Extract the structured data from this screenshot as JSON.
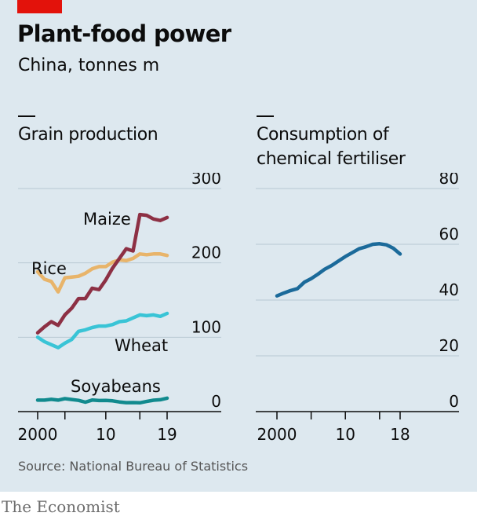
{
  "header": {
    "title": "Plant-food power",
    "subtitle": "China, tonnes m"
  },
  "footer": {
    "source": "Source: National Bureau of Statistics",
    "brand": "The Economist"
  },
  "colors": {
    "background": "#dde8ef",
    "accent_red": "#e3120b",
    "maize": "#8d3044",
    "rice": "#e8b46a",
    "wheat": "#39c4d6",
    "soyabeans": "#118a8e",
    "fertiliser": "#1b6a9a"
  },
  "chart_data": [
    {
      "type": "line",
      "title": "Grain production",
      "ylim": [
        0,
        300
      ],
      "yticks": [
        0,
        100,
        200,
        300
      ],
      "xlim": [
        1999.5,
        2020
      ],
      "xticks": [
        2000,
        2004,
        2010,
        2015,
        2019
      ],
      "xtick_labels": [
        "2000",
        "",
        "10",
        "",
        "19"
      ],
      "grid": true,
      "series": [
        {
          "name": "Maize",
          "x": [
            2000,
            2001,
            2002,
            2003,
            2004,
            2005,
            2006,
            2007,
            2008,
            2009,
            2010,
            2011,
            2012,
            2013,
            2014,
            2015,
            2016,
            2017,
            2018,
            2019
          ],
          "values": [
            106,
            114,
            121,
            116,
            130,
            139,
            152,
            152,
            166,
            164,
            177,
            193,
            206,
            219,
            216,
            265,
            264,
            259,
            257,
            261
          ]
        },
        {
          "name": "Rice",
          "x": [
            2000,
            2001,
            2002,
            2003,
            2004,
            2005,
            2006,
            2007,
            2008,
            2009,
            2010,
            2011,
            2012,
            2013,
            2014,
            2015,
            2016,
            2017,
            2018,
            2019
          ],
          "values": [
            188,
            178,
            175,
            161,
            180,
            181,
            182,
            186,
            192,
            195,
            195,
            201,
            204,
            203,
            206,
            212,
            211,
            212,
            212,
            210
          ]
        },
        {
          "name": "Wheat",
          "x": [
            2000,
            2001,
            2002,
            2003,
            2004,
            2005,
            2006,
            2007,
            2008,
            2009,
            2010,
            2011,
            2012,
            2013,
            2014,
            2015,
            2016,
            2017,
            2018,
            2019
          ],
          "values": [
            100,
            94,
            90,
            86,
            92,
            97,
            108,
            110,
            113,
            115,
            115,
            117,
            121,
            122,
            126,
            130,
            129,
            130,
            128,
            132
          ]
        },
        {
          "name": "Soyabeans",
          "x": [
            2000,
            2001,
            2002,
            2003,
            2004,
            2005,
            2006,
            2007,
            2008,
            2009,
            2010,
            2011,
            2012,
            2013,
            2014,
            2015,
            2016,
            2017,
            2018,
            2019
          ],
          "values": [
            15.4,
            15.4,
            16.5,
            15.4,
            17.4,
            16.3,
            15.1,
            12.7,
            15.5,
            14.9,
            15.1,
            14.5,
            13.0,
            12.0,
            12.2,
            11.8,
            13.6,
            15.3,
            16.0,
            18.1
          ]
        }
      ]
    },
    {
      "type": "line",
      "title": "Consumption of chemical fertiliser",
      "ylim": [
        0,
        80
      ],
      "yticks": [
        0,
        20,
        40,
        60,
        80
      ],
      "xlim": [
        1999.5,
        2020
      ],
      "xticks": [
        2000,
        2005,
        2010,
        2015,
        2018
      ],
      "xtick_labels": [
        "2000",
        "",
        "10",
        "",
        "18"
      ],
      "grid": true,
      "series": [
        {
          "name": "Fertiliser",
          "x": [
            2000,
            2001,
            2002,
            2003,
            2004,
            2005,
            2006,
            2007,
            2008,
            2009,
            2010,
            2011,
            2012,
            2013,
            2014,
            2015,
            2016,
            2017,
            2018
          ],
          "values": [
            41.5,
            42.5,
            43.4,
            44.1,
            46.4,
            47.7,
            49.3,
            51.1,
            52.4,
            54.0,
            55.6,
            57.0,
            58.4,
            59.1,
            60.0,
            60.2,
            59.8,
            58.6,
            56.5
          ]
        }
      ]
    }
  ]
}
